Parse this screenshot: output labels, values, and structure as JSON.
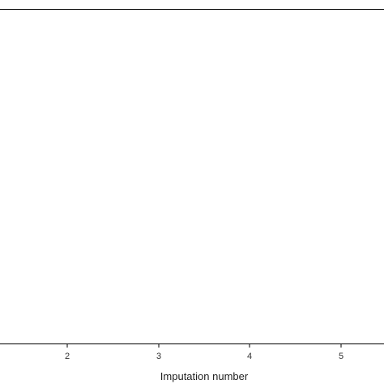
{
  "chart_data": {
    "type": "scatter",
    "title": "",
    "xlabel": "Imputation number",
    "ylabel": "",
    "x_ticks": [
      "2",
      "3",
      "4",
      "5"
    ],
    "grid": false,
    "legend": "none",
    "colors": {
      "observed": "#1f8fd0",
      "imputed": "#d6336f"
    }
  }
}
